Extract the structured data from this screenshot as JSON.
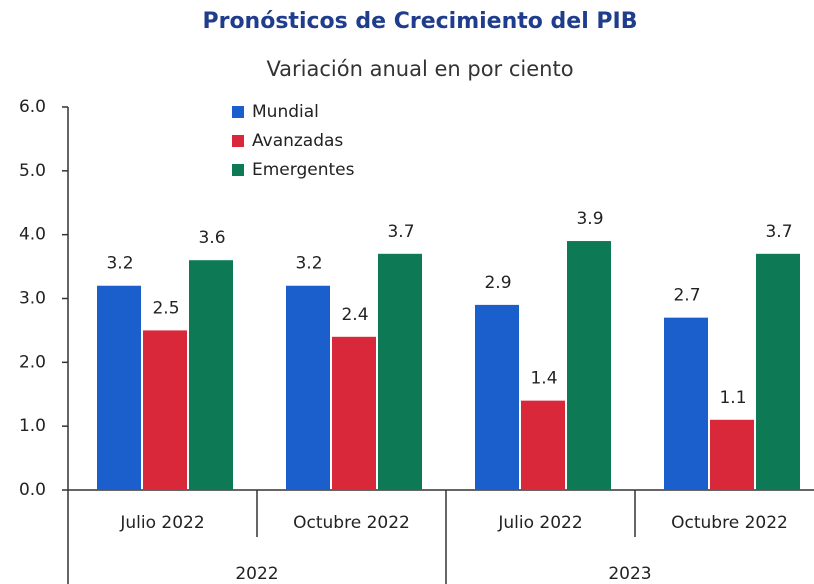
{
  "chart_data": {
    "type": "bar",
    "title": "Pronósticos de Crecimiento del PIB",
    "subtitle": "Variación anual en por ciento",
    "categories": [
      "Julio 2022",
      "Octubre 2022",
      "Julio 2022",
      "Octubre 2022"
    ],
    "group_labels": [
      "2022",
      "2023"
    ],
    "series": [
      {
        "name": "Mundial",
        "color": "#1a5fcc",
        "values": [
          3.2,
          3.2,
          2.9,
          2.7
        ]
      },
      {
        "name": "Avanzadas",
        "color": "#d8283a",
        "values": [
          2.5,
          2.4,
          1.4,
          1.1
        ]
      },
      {
        "name": "Emergentes",
        "color": "#0d7a55",
        "values": [
          3.6,
          3.7,
          3.9,
          3.7
        ]
      }
    ],
    "ylim": [
      0,
      6
    ],
    "yticks": [
      {
        "value": 0,
        "label": "0.0"
      },
      {
        "value": 1,
        "label": "1.0"
      },
      {
        "value": 2,
        "label": "2.0"
      },
      {
        "value": 3,
        "label": "3.0"
      },
      {
        "value": 4,
        "label": "4.0"
      },
      {
        "value": 5,
        "label": "5.0"
      },
      {
        "value": 6,
        "label": "6.0"
      }
    ]
  }
}
